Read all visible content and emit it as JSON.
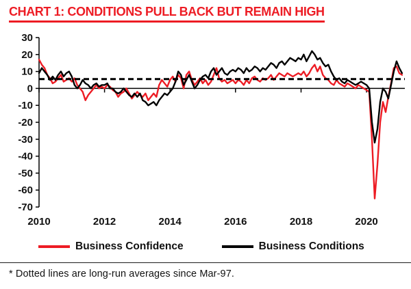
{
  "title": "CHART 1: CONDITIONS PULL BACK BUT REMAIN HIGH",
  "footnote": "* Dotted lines are long-run averages since Mar-97.",
  "colors": {
    "accent_red": "#ED1C24",
    "line_black": "#000000",
    "text": "#111111"
  },
  "legend": [
    {
      "label": "Business Confidence",
      "color": "#ED1C24"
    },
    {
      "label": "Business Conditions",
      "color": "#000000"
    }
  ],
  "chart_data": {
    "type": "line",
    "title": "CHART 1: CONDITIONS PULL BACK BUT REMAIN HIGH",
    "xlabel": "",
    "ylabel": "",
    "x_unit": "year (monthly data from Jan-2010)",
    "x_start": 2010.0,
    "x_step": 0.0833333,
    "xlim": [
      2010,
      2021.17
    ],
    "ylim": [
      -70,
      30
    ],
    "y_tick_step": 10,
    "x_ticks": [
      2010,
      2012,
      2014,
      2016,
      2018,
      2020
    ],
    "long_run_average": 5.5,
    "grid": false,
    "legend_position": "bottom",
    "series": [
      {
        "name": "Business Confidence",
        "color": "#ED1C24",
        "values": [
          17,
          14,
          12,
          8,
          6,
          3,
          4,
          6,
          8,
          4,
          5,
          6,
          4,
          6,
          2,
          0,
          -2,
          -7,
          -4,
          -2,
          0,
          2,
          0,
          1,
          0,
          2,
          1,
          -1,
          -2,
          -5,
          -3,
          -2,
          0,
          -3,
          -6,
          -4,
          -2,
          -4,
          -5,
          -3,
          -7,
          -5,
          -3,
          -5,
          2,
          5,
          3,
          1,
          5,
          7,
          4,
          8,
          6,
          0,
          8,
          10,
          5,
          2,
          4,
          6,
          3,
          5,
          2,
          4,
          8,
          12,
          6,
          4,
          5,
          3,
          4,
          5,
          3,
          5,
          4,
          2,
          5,
          3,
          6,
          7,
          5,
          4,
          6,
          5,
          6,
          8,
          5,
          7,
          9,
          8,
          7,
          9,
          8,
          7,
          8,
          9,
          8,
          10,
          7,
          9,
          12,
          14,
          10,
          13,
          8,
          6,
          5,
          3,
          2,
          5,
          3,
          2,
          1,
          3,
          2,
          1,
          0,
          2,
          1,
          0,
          -1,
          -2,
          -30,
          -65,
          -45,
          -20,
          -8,
          -14,
          -5,
          3,
          12,
          13,
          9,
          8
        ]
      },
      {
        "name": "Business Conditions",
        "color": "#000000",
        "values": [
          9,
          12,
          10,
          8,
          5,
          7,
          5,
          8,
          10,
          7,
          9,
          10,
          7,
          2,
          0,
          2,
          5,
          3,
          2,
          0,
          2,
          3,
          1,
          2,
          2,
          3,
          0,
          0,
          -2,
          -3,
          -2,
          0,
          -2,
          -4,
          -5,
          -3,
          -5,
          -3,
          -7,
          -8,
          -10,
          -9,
          -8,
          -10,
          -7,
          -5,
          -3,
          -4,
          -2,
          0,
          4,
          10,
          8,
          2,
          5,
          8,
          4,
          0,
          2,
          5,
          7,
          8,
          6,
          10,
          12,
          8,
          10,
          12,
          9,
          8,
          10,
          11,
          10,
          12,
          11,
          9,
          12,
          10,
          11,
          13,
          12,
          10,
          12,
          11,
          13,
          15,
          14,
          12,
          15,
          16,
          14,
          16,
          18,
          17,
          16,
          18,
          17,
          20,
          16,
          19,
          22,
          20,
          17,
          18,
          15,
          13,
          14,
          10,
          7,
          5,
          6,
          4,
          3,
          5,
          4,
          3,
          2,
          3,
          4,
          3,
          2,
          0,
          -20,
          -32,
          -24,
          -8,
          0,
          -2,
          -6,
          2,
          10,
          16,
          12,
          9
        ]
      }
    ]
  }
}
